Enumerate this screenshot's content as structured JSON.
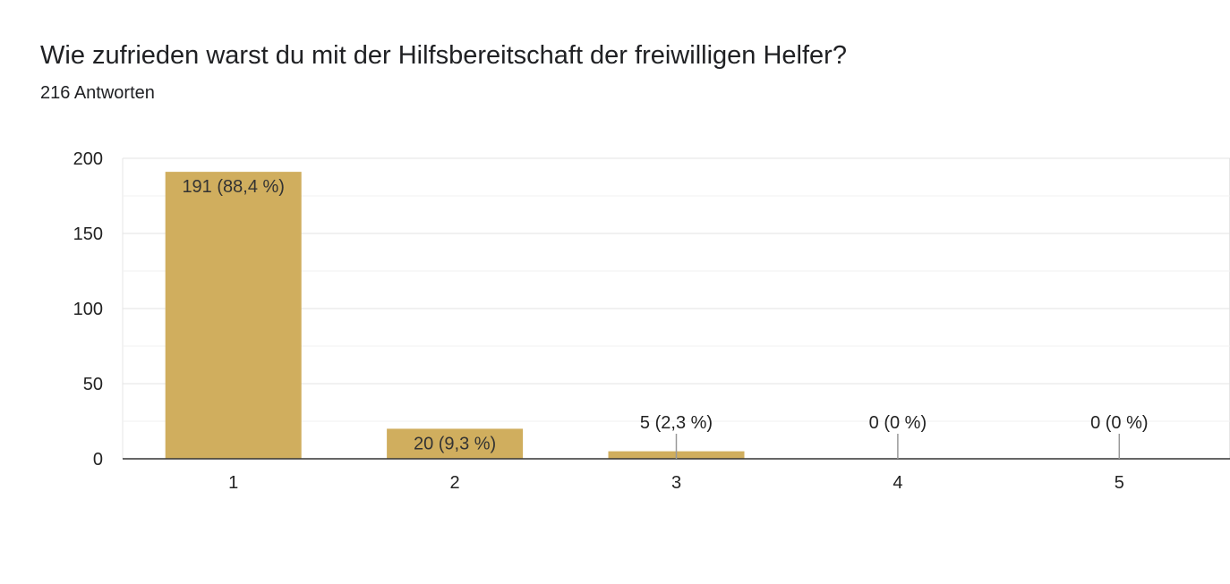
{
  "header": {
    "title": "Wie zufrieden warst du mit der Hilfsbereitschaft der freiwilligen Helfer?",
    "subtitle": "216 Antworten"
  },
  "chart_data": {
    "type": "bar",
    "categories": [
      "1",
      "2",
      "3",
      "4",
      "5"
    ],
    "values": [
      191,
      20,
      5,
      0,
      0
    ],
    "data_labels": [
      "191 (88,4 %)",
      "20 (9,3 %)",
      "5 (2,3 %)",
      "0 (0 %)",
      "0 (0 %)"
    ],
    "y_ticks": [
      0,
      50,
      100,
      150,
      200
    ],
    "ylim": [
      0,
      200
    ],
    "grid": true,
    "bar_color": "#d0ae5e"
  }
}
